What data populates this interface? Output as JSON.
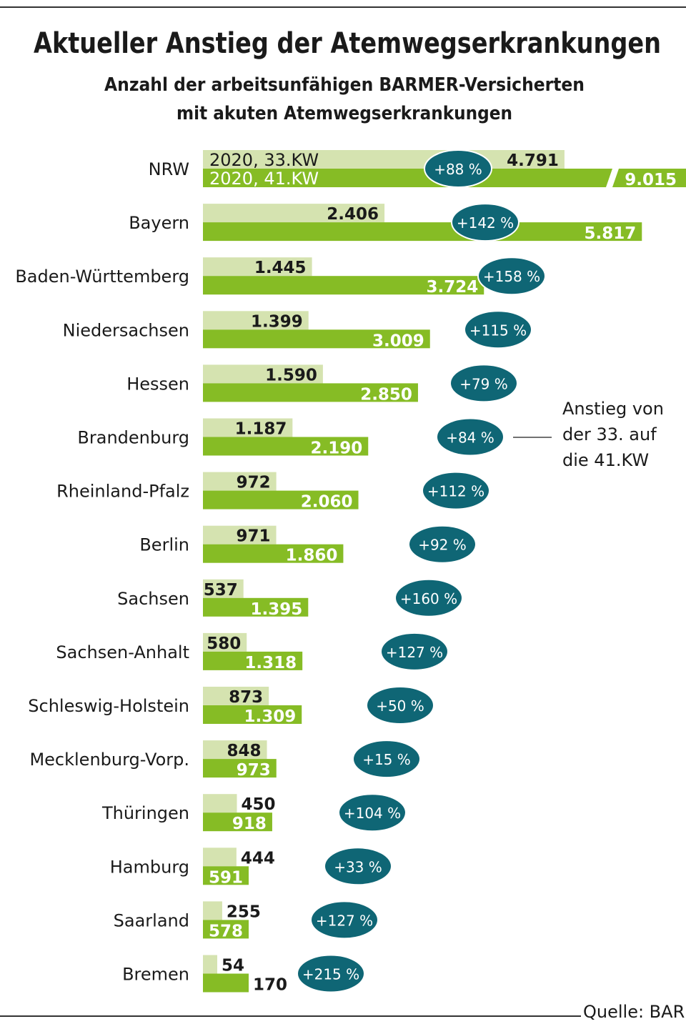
{
  "chart_data": {
    "type": "bar",
    "orientation": "horizontal",
    "title": "Aktueller Anstieg der Atemwegserkrankungen",
    "subtitle_line1": "Anzahl der arbeitsunfähigen BARMER-Versicherten",
    "subtitle_line2": "mit akuten Atemwegserkrankungen",
    "legend_inline": [
      "2020, 33.KW",
      "2020, 41.KW"
    ],
    "categories": [
      "NRW",
      "Bayern",
      "Baden-Württemberg",
      "Niedersachsen",
      "Hessen",
      "Brandenburg",
      "Rheinland-Pfalz",
      "Berlin",
      "Sachsen",
      "Sachsen-Anhalt",
      "Schleswig-Holstein",
      "Mecklenburg-Vorp.",
      "Thüringen",
      "Hamburg",
      "Saarland",
      "Bremen"
    ],
    "series": [
      {
        "name": "2020, 33.KW",
        "values": [
          4791,
          2406,
          1445,
          1399,
          1590,
          1187,
          972,
          971,
          537,
          580,
          873,
          848,
          450,
          444,
          255,
          54
        ],
        "labels": [
          "4.791",
          "2.406",
          "1.445",
          "1.399",
          "1.590",
          "1.187",
          "972",
          "971",
          "537",
          "580",
          "873",
          "848",
          "450",
          "444",
          "255",
          "54"
        ]
      },
      {
        "name": "2020, 41.KW",
        "values": [
          9015,
          5817,
          3724,
          3009,
          2850,
          2190,
          2060,
          1860,
          1395,
          1318,
          1309,
          973,
          918,
          591,
          578,
          170
        ],
        "labels": [
          "9.015",
          "5.817",
          "3.724",
          "3.009",
          "2.850",
          "2.190",
          "2.060",
          "1.860",
          "1.395",
          "1.318",
          "1.309",
          "973",
          "918",
          "591",
          "578",
          "170"
        ]
      }
    ],
    "increase_labels": [
      "+88 %",
      "+142 %",
      "+158 %",
      "+115 %",
      "+79 %",
      "+84 %",
      "+112 %",
      "+92 %",
      "+160 %",
      "+127 %",
      "+50 %",
      "+15 %",
      "+104 %",
      "+33 %",
      "+127 %",
      "+215 %"
    ],
    "annotation": [
      "Anstieg von",
      "der 33. auf",
      "die 41.KW"
    ],
    "axis_break_on": "NRW 2020, 41.KW",
    "source": "Quelle: BARMER",
    "colors": {
      "kw33": "#d5e3b0",
      "kw41": "#86bc25",
      "increase_badge": "#0f6675"
    }
  }
}
